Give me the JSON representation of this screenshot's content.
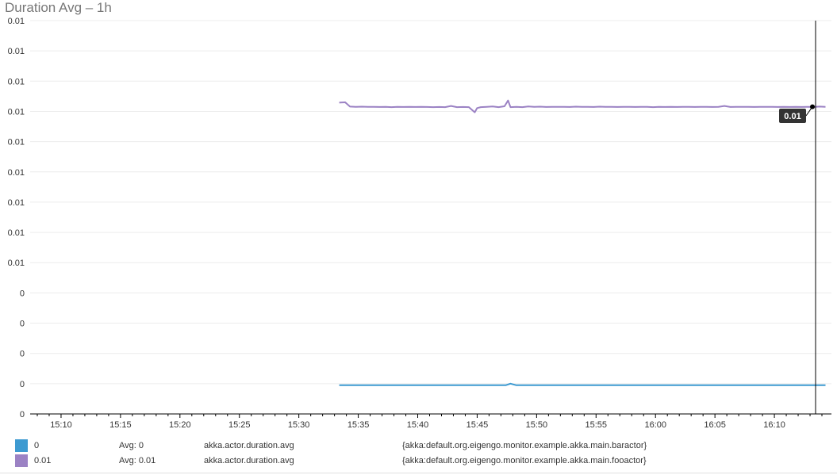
{
  "chart_data": {
    "type": "line",
    "title": "Duration Avg – 1h",
    "xlabel": "",
    "ylabel": "",
    "y_tick_labels": [
      "0.01",
      "0.01",
      "0.01",
      "0.01",
      "0.01",
      "0.01",
      "0.01",
      "0.01",
      "0.01",
      "0",
      "0",
      "0",
      "0",
      "0"
    ],
    "ylim": [
      0,
      0.013
    ],
    "x_tick_labels": [
      "15:10",
      "15:15",
      "15:20",
      "15:25",
      "15:30",
      "15:35",
      "15:40",
      "15:45",
      "15:50",
      "15:55",
      "16:00",
      "16:05",
      "16:10"
    ],
    "x_tick_minutes": [
      10,
      15,
      20,
      25,
      30,
      35,
      40,
      45,
      50,
      55,
      60,
      65,
      70
    ],
    "xlim_minutes": [
      7.4,
      74.8
    ],
    "series": [
      {
        "name": "{akka:default.org.eigengo.monitor.example.akka.main.fooactor}",
        "color": "#9b82c4",
        "x_minutes": [
          33.4,
          33.9,
          34.3,
          34.8,
          35.3,
          35.8,
          36.3,
          36.8,
          37.3,
          37.8,
          38.3,
          38.8,
          39.3,
          39.8,
          40.3,
          40.8,
          41.3,
          41.8,
          42.3,
          42.8,
          43.3,
          43.8,
          44.3,
          44.8,
          45.0,
          45.3,
          45.8,
          46.3,
          46.8,
          47.3,
          47.6,
          47.8,
          48.3,
          48.8,
          49.3,
          49.8,
          50.3,
          50.8,
          51.3,
          51.8,
          52.3,
          52.8,
          53.3,
          53.8,
          54.3,
          54.8,
          55.3,
          55.8,
          56.3,
          56.8,
          57.3,
          57.8,
          58.3,
          58.8,
          59.3,
          59.8,
          60.3,
          60.8,
          61.3,
          61.8,
          62.3,
          62.8,
          63.3,
          63.8,
          64.3,
          64.8,
          65.3,
          65.8,
          66.3,
          66.8,
          67.3,
          67.8,
          68.3,
          68.8,
          69.3,
          69.8,
          70.3,
          70.8,
          71.3,
          71.8,
          72.3,
          72.8,
          73.3,
          73.8,
          74.3
        ],
        "values": [
          0.01029,
          0.0103,
          0.01016,
          0.01015,
          0.010155,
          0.01015,
          0.010152,
          0.010145,
          0.01015,
          0.01014,
          0.01015,
          0.010145,
          0.01015,
          0.010145,
          0.010148,
          0.010145,
          0.01014,
          0.010145,
          0.01014,
          0.01018,
          0.01014,
          0.010145,
          0.01014,
          0.00997,
          0.01011,
          0.01014,
          0.01015,
          0.010165,
          0.01014,
          0.01017,
          0.01036,
          0.01014,
          0.01015,
          0.01014,
          0.010165,
          0.01015,
          0.010155,
          0.010145,
          0.01015,
          0.010148,
          0.01015,
          0.010145,
          0.010155,
          0.01015,
          0.01015,
          0.010145,
          0.010155,
          0.010148,
          0.01015,
          0.010145,
          0.01015,
          0.01015,
          0.010145,
          0.010148,
          0.01015,
          0.01014,
          0.01015,
          0.010145,
          0.01015,
          0.010145,
          0.010148,
          0.01015,
          0.010145,
          0.01015,
          0.010148,
          0.010145,
          0.01015,
          0.01018,
          0.010145,
          0.01015,
          0.010148,
          0.01015,
          0.010145,
          0.01015,
          0.01015,
          0.01015,
          0.010145,
          0.01015,
          0.010145,
          0.01015,
          0.010145,
          0.01015,
          0.010145,
          0.01016,
          0.01015
        ]
      },
      {
        "name": "{akka:default.org.eigengo.monitor.example.akka.main.baractor}",
        "color": "#3d9ad1",
        "x_minutes": [
          33.4,
          40.0,
          45.0,
          47.0,
          47.4,
          47.8,
          48.3,
          50.0,
          55.0,
          60.0,
          65.0,
          70.0,
          74.3
        ],
        "values": [
          0.00095,
          0.00095,
          0.00095,
          0.00095,
          0.00095,
          0.001,
          0.00095,
          0.00095,
          0.00095,
          0.00095,
          0.00095,
          0.00095,
          0.00095
        ]
      }
    ],
    "tooltip": {
      "label": "0.01",
      "x_minutes": 73.2,
      "value": 0.010152
    },
    "grid": true,
    "legend_position": "bottom"
  },
  "legend": [
    {
      "color": "#3d9ad1",
      "last": "0",
      "avg": "Avg: 0",
      "metric": "akka.actor.duration.avg",
      "tags": "{akka:default.org.eigengo.monitor.example.akka.main.baractor}"
    },
    {
      "color": "#9b82c4",
      "last": "0.01",
      "avg": "Avg: 0.01",
      "metric": "akka.actor.duration.avg",
      "tags": "{akka:default.org.eigengo.monitor.example.akka.main.fooactor}"
    }
  ]
}
